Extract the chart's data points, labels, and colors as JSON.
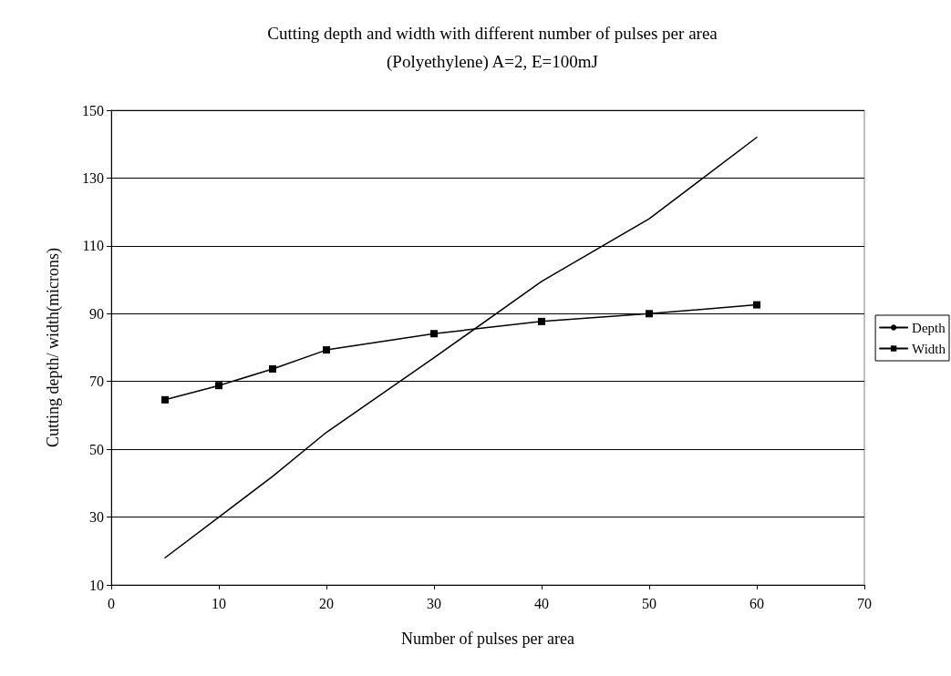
{
  "chart_data": {
    "type": "line",
    "title": "Cutting depth and width with different number of pulses per area",
    "subtitle": "(Polyethylene) A=2, E=100mJ",
    "xlabel": "Number of pulses per area",
    "ylabel": "Cutting depth/ width(microns)",
    "x": [
      5,
      10,
      15,
      20,
      30,
      40,
      50,
      60
    ],
    "series": [
      {
        "name": "Depth",
        "color": "#000000",
        "marker": "none",
        "values": [
          18,
          30,
          42,
          55,
          77,
          99.5,
          118,
          142
        ]
      },
      {
        "name": "Width",
        "color": "#000000",
        "marker": "square",
        "values": [
          64.6,
          68.8,
          73.7,
          79.3,
          84.1,
          87.7,
          90,
          92.6
        ]
      }
    ],
    "xlim": [
      0,
      70
    ],
    "xticks": [
      0,
      10,
      20,
      30,
      40,
      50,
      60,
      70
    ],
    "ylim": [
      10,
      150
    ],
    "yticks": [
      10,
      30,
      50,
      70,
      90,
      110,
      130,
      150
    ],
    "grid": "y",
    "legend": "right",
    "line_style": "solid"
  }
}
